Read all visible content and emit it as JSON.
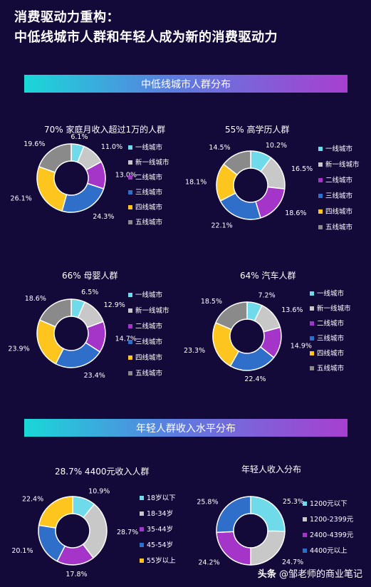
{
  "header": {
    "title_line1": "消费驱动力重构：",
    "title_line2": "中低线城市人群和年轻人成为新的消费驱动力"
  },
  "section1": {
    "banner": "中低线城市人群分布"
  },
  "section2": {
    "banner": "年轻人群收入水平分布"
  },
  "footer": {
    "platform": "头条",
    "author": "@邹老师的商业笔记"
  },
  "colors": {
    "cyan": "#6fdbea",
    "lightgray": "#c8c8c8",
    "purple": "#a535c8",
    "blue": "#2f6ec9",
    "yellow": "#fdc51e",
    "gray": "#8a8a8a"
  },
  "chart_data": [
    {
      "type": "pie",
      "title": "70% 家庭月收入超过1万的人群",
      "categories": [
        "一线城市",
        "新一线城市",
        "二线城市",
        "三线城市",
        "四线城市",
        "五线城市"
      ],
      "values": [
        6.1,
        11.0,
        13.0,
        24.3,
        26.1,
        19.6
      ],
      "labels": [
        "6.1%",
        "11.0%",
        "13.0%",
        "24.3%",
        "26.1%",
        "19.6%"
      ],
      "legend": "right"
    },
    {
      "type": "pie",
      "title": "55% 高学历人群",
      "categories": [
        "一线城市",
        "新一线城市",
        "二线城市",
        "三线城市",
        "四线城市",
        "五线城市"
      ],
      "values": [
        10.2,
        16.5,
        18.6,
        22.1,
        18.1,
        14.5
      ],
      "labels": [
        "10.2%",
        "16.5%",
        "18.6%",
        "22.1%",
        "18.1%",
        "14.5%"
      ],
      "legend": "right"
    },
    {
      "type": "pie",
      "title": "66% 母婴人群",
      "categories": [
        "一线城市",
        "新一线城市",
        "二线城市",
        "三线城市",
        "四线城市",
        "五线城市"
      ],
      "values": [
        6.5,
        12.9,
        14.7,
        23.4,
        23.9,
        18.6
      ],
      "labels": [
        "6.5%",
        "12.9%",
        "14.7%",
        "23.4%",
        "23.9%",
        "18.6%"
      ],
      "legend": "right"
    },
    {
      "type": "pie",
      "title": "64% 汽车人群",
      "categories": [
        "一线城市",
        "新一线城市",
        "二线城市",
        "三线城市",
        "四线城市",
        "五线城市"
      ],
      "values": [
        7.2,
        13.6,
        14.9,
        22.4,
        23.3,
        18.5
      ],
      "labels": [
        "7.2%",
        "13.6%",
        "14.9%",
        "22.4%",
        "23.3%",
        "18.5%"
      ],
      "legend": "right"
    },
    {
      "type": "pie",
      "title": "28.7% 4400元收入人群",
      "categories": [
        "18岁以下",
        "18-34岁",
        "35-44岁",
        "45-54岁",
        "55岁以上"
      ],
      "values": [
        10.9,
        28.7,
        17.8,
        20.1,
        22.4
      ],
      "labels": [
        "10.9%",
        "28.7%",
        "17.8%",
        "20.1%",
        "22.4%"
      ],
      "legend": "right"
    },
    {
      "type": "pie",
      "title": "年轻人收入分布",
      "categories": [
        "1200元以下",
        "1200-2399元",
        "2400-4399元",
        "4400元以上"
      ],
      "values": [
        25.3,
        24.7,
        24.2,
        25.8
      ],
      "labels": [
        "25.3%",
        "24.7%",
        "24.2%",
        "25.8%"
      ],
      "legend": "right"
    }
  ]
}
